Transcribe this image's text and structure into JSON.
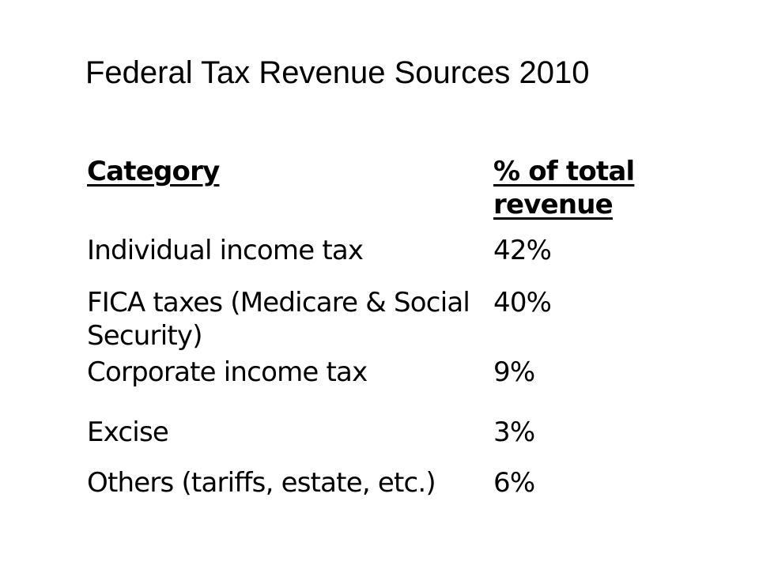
{
  "slide": {
    "title": "Federal Tax Revenue Sources 2010"
  },
  "table": {
    "headers": {
      "category": "Category",
      "percent": "% of total revenue"
    },
    "rows": [
      {
        "category": "Individual income tax",
        "percent": "42%"
      },
      {
        "category": "FICA taxes (Medicare & Social Security)",
        "percent": "40%"
      },
      {
        "category": "Corporate income tax",
        "percent": "9%"
      },
      {
        "category": "Excise",
        "percent": "3%"
      },
      {
        "category": "Others (tariffs, estate, etc.)",
        "percent": "6%"
      }
    ]
  }
}
